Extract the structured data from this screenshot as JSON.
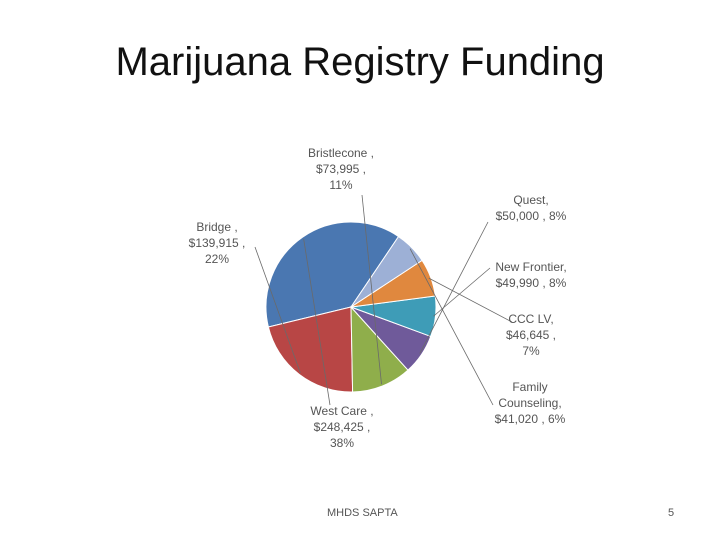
{
  "slide": {
    "title": "Marijuana Registry Funding",
    "footer_center": "MHDS SAPTA",
    "page_number": "5"
  },
  "chart_data": {
    "type": "pie",
    "title": "Marijuana Registry Funding",
    "start_angle_deg": 56,
    "direction": "counterclockwise",
    "slices": [
      {
        "name": "West Care",
        "amount": "$248,425",
        "percent": "38%",
        "value": 248425,
        "color": "#4a77b1",
        "label_lines": [
          "West Care ,",
          "$248,425 ,",
          "38%"
        ]
      },
      {
        "name": "Bridge",
        "amount": "$139,915",
        "percent": "22%",
        "value": 139915,
        "color": "#b84645",
        "label_lines": [
          "Bridge ,",
          "$139,915 ,",
          "22%"
        ]
      },
      {
        "name": "Bristlecone",
        "amount": "$73,995",
        "percent": "11%",
        "value": 73995,
        "color": "#8fae4b",
        "label_lines": [
          "Bristlecone ,",
          "$73,995 ,",
          "11%"
        ]
      },
      {
        "name": "Quest",
        "amount": "$50,000",
        "percent": "8%",
        "value": 50000,
        "color": "#6f5a9a",
        "label_lines": [
          "Quest,",
          "$50,000 , 8%"
        ]
      },
      {
        "name": "New Frontier",
        "amount": "$49,990",
        "percent": "8%",
        "value": 49990,
        "color": "#3e9cb7",
        "label_lines": [
          "New Frontier,",
          "$49,990 , 8%"
        ]
      },
      {
        "name": "CCC LV",
        "amount": "$46,645",
        "percent": "7%",
        "value": 46645,
        "color": "#e0883e",
        "label_lines": [
          "CCC LV,",
          "$46,645 ,",
          "7%"
        ]
      },
      {
        "name": "Family Counseling",
        "amount": "$41,020",
        "percent": "6%",
        "value": 41020,
        "color": "#9db0d6",
        "label_lines": [
          "Family",
          "Counseling,",
          "$41,020 , 6%"
        ]
      }
    ]
  }
}
